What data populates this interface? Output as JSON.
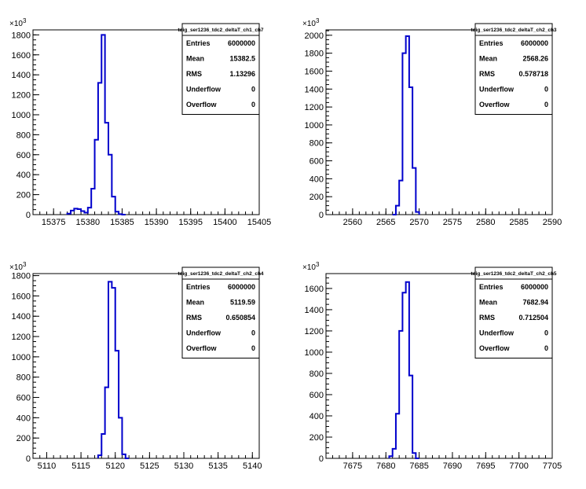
{
  "chart_data": [
    {
      "type": "histogram",
      "stats": {
        "title": "tdig_ser1236_tdc2_deltaT_ch1_ch7",
        "rows": [
          {
            "key": "Entries",
            "value": "6000000"
          },
          {
            "key": "Mean",
            "value": "15382.5"
          },
          {
            "key": "RMS",
            "value": "1.13296"
          },
          {
            "key": "Underflow",
            "value": "0"
          },
          {
            "key": "Overflow",
            "value": "0"
          }
        ]
      },
      "xlim": [
        15372,
        15405
      ],
      "ylim": [
        0,
        1850
      ],
      "xticks": [
        15375,
        15380,
        15385,
        15390,
        15395,
        15400,
        15405
      ],
      "yticks": [
        0,
        200,
        400,
        600,
        800,
        1000,
        1200,
        1400,
        1600,
        1800
      ],
      "y_multiplier_exp": "3",
      "bin_width": 0.5,
      "bins_x": [
        15377,
        15377.5,
        15378,
        15378.5,
        15379,
        15379.5,
        15380,
        15380.5,
        15381,
        15381.5,
        15382,
        15382.5,
        15383,
        15383.5,
        15384,
        15384.5,
        15385
      ],
      "bins_y": [
        10,
        40,
        60,
        55,
        35,
        20,
        70,
        260,
        750,
        1320,
        1800,
        920,
        600,
        180,
        30,
        5,
        0
      ]
    },
    {
      "type": "histogram",
      "stats": {
        "title": "tdig_ser1236_tdc2_deltaT_ch2_ch3",
        "rows": [
          {
            "key": "Entries",
            "value": "6000000"
          },
          {
            "key": "Mean",
            "value": "2568.26"
          },
          {
            "key": "RMS",
            "value": "0.578718"
          },
          {
            "key": "Underflow",
            "value": "0"
          },
          {
            "key": "Overflow",
            "value": "0"
          }
        ]
      },
      "xlim": [
        2556,
        2590
      ],
      "ylim": [
        0,
        2060
      ],
      "xticks": [
        2560,
        2565,
        2570,
        2575,
        2580,
        2585,
        2590
      ],
      "yticks": [
        0,
        200,
        400,
        600,
        800,
        1000,
        1200,
        1400,
        1600,
        1800,
        2000
      ],
      "y_multiplier_exp": "3",
      "bin_width": 0.5,
      "bins_x": [
        2566,
        2566.5,
        2567,
        2567.5,
        2568,
        2568.5,
        2569,
        2569.5
      ],
      "bins_y": [
        0,
        100,
        380,
        1800,
        1990,
        1420,
        520,
        30
      ]
    },
    {
      "type": "histogram",
      "stats": {
        "title": "tdig_ser1236_tdc2_deltaT_ch2_ch4",
        "rows": [
          {
            "key": "Entries",
            "value": "6000000"
          },
          {
            "key": "Mean",
            "value": "5119.59"
          },
          {
            "key": "RMS",
            "value": "0.650854"
          },
          {
            "key": "Underflow",
            "value": "0"
          },
          {
            "key": "Overflow",
            "value": "0"
          }
        ]
      },
      "xlim": [
        5108,
        5141
      ],
      "ylim": [
        0,
        1820
      ],
      "xticks": [
        5110,
        5115,
        5120,
        5125,
        5130,
        5135,
        5140
      ],
      "yticks": [
        0,
        200,
        400,
        600,
        800,
        1000,
        1200,
        1400,
        1600,
        1800
      ],
      "y_multiplier_exp": "3",
      "bin_width": 0.5,
      "bins_x": [
        5117.5,
        5118,
        5118.5,
        5119,
        5119.5,
        5120,
        5120.5,
        5121,
        5121.5
      ],
      "bins_y": [
        30,
        240,
        700,
        1740,
        1680,
        1060,
        400,
        40,
        0
      ]
    },
    {
      "type": "histogram",
      "stats": {
        "title": "tdig_ser1236_tdc2_deltaT_ch2_ch5",
        "rows": [
          {
            "key": "Entries",
            "value": "6000000"
          },
          {
            "key": "Mean",
            "value": "7682.94"
          },
          {
            "key": "RMS",
            "value": "0.712504"
          },
          {
            "key": "Underflow",
            "value": "0"
          },
          {
            "key": "Overflow",
            "value": "0"
          }
        ]
      },
      "xlim": [
        7671,
        7705
      ],
      "ylim": [
        0,
        1740
      ],
      "xticks": [
        7675,
        7680,
        7685,
        7690,
        7695,
        7700,
        7705
      ],
      "yticks": [
        0,
        200,
        400,
        600,
        800,
        1000,
        1200,
        1400,
        1600
      ],
      "y_multiplier_exp": "3",
      "bin_width": 0.5,
      "bins_x": [
        7680.5,
        7681,
        7681.5,
        7682,
        7682.5,
        7683,
        7683.5,
        7684,
        7684.5
      ],
      "bins_y": [
        20,
        90,
        420,
        1200,
        1560,
        1660,
        780,
        50,
        0
      ]
    }
  ]
}
